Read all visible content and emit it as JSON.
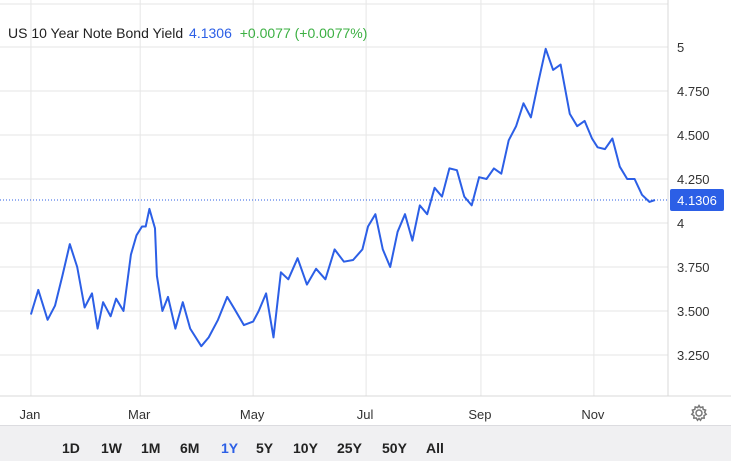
{
  "header": {
    "title": "US 10 Year Note Bond Yield",
    "price": "4.1306",
    "change": "+0.0077 (+0.0077%)"
  },
  "current_label": "4.1306",
  "settings_icon": "gear-icon",
  "colors": {
    "line": "#2c5fe6",
    "positive": "#3cb043",
    "grid": "#e6e6e6",
    "current_label_bg": "#2c5fe6"
  },
  "ranges": [
    {
      "label": "1D",
      "active": false
    },
    {
      "label": "1W",
      "active": false
    },
    {
      "label": "1M",
      "active": false
    },
    {
      "label": "6M",
      "active": false
    },
    {
      "label": "1Y",
      "active": true
    },
    {
      "label": "5Y",
      "active": false
    },
    {
      "label": "10Y",
      "active": false
    },
    {
      "label": "25Y",
      "active": false
    },
    {
      "label": "50Y",
      "active": false
    },
    {
      "label": "All",
      "active": false
    }
  ],
  "chart_data": {
    "type": "line",
    "title": "US 10 Year Note Bond Yield",
    "xlabel": "",
    "ylabel": "",
    "x_ticks": [
      "Jan",
      "Mar",
      "May",
      "Jul",
      "Sep",
      "Nov"
    ],
    "y_ticks": [
      "5",
      "4.750",
      "4.500",
      "4.250",
      "4",
      "3.750",
      "3.500",
      "3.250"
    ],
    "y_tick_values": [
      5,
      4.75,
      4.5,
      4.25,
      4,
      3.75,
      3.5,
      3.25
    ],
    "ylim": [
      3.1,
      5.15
    ],
    "current_value": 4.1306,
    "grid": true,
    "x": [
      "2023-01-01",
      "2023-01-05",
      "2023-01-10",
      "2023-01-14",
      "2023-01-18",
      "2023-01-22",
      "2023-01-26",
      "2023-01-30",
      "2023-02-03",
      "2023-02-06",
      "2023-02-09",
      "2023-02-13",
      "2023-02-16",
      "2023-02-20",
      "2023-02-24",
      "2023-02-27",
      "2023-03-02",
      "2023-03-04",
      "2023-03-06",
      "2023-03-09",
      "2023-03-10",
      "2023-03-13",
      "2023-03-16",
      "2023-03-20",
      "2023-03-24",
      "2023-03-28",
      "2023-04-03",
      "2023-04-07",
      "2023-04-12",
      "2023-04-17",
      "2023-04-21",
      "2023-04-26",
      "2023-05-01",
      "2023-05-04",
      "2023-05-08",
      "2023-05-12",
      "2023-05-16",
      "2023-05-20",
      "2023-05-25",
      "2023-05-30",
      "2023-06-04",
      "2023-06-09",
      "2023-06-14",
      "2023-06-19",
      "2023-06-24",
      "2023-06-29",
      "2023-07-02",
      "2023-07-06",
      "2023-07-10",
      "2023-07-14",
      "2023-07-18",
      "2023-07-22",
      "2023-07-26",
      "2023-07-30",
      "2023-08-03",
      "2023-08-07",
      "2023-08-11",
      "2023-08-15",
      "2023-08-19",
      "2023-08-23",
      "2023-08-27",
      "2023-08-31",
      "2023-09-04",
      "2023-09-08",
      "2023-09-12",
      "2023-09-16",
      "2023-09-20",
      "2023-09-24",
      "2023-09-28",
      "2023-10-02",
      "2023-10-06",
      "2023-10-10",
      "2023-10-14",
      "2023-10-19",
      "2023-10-23",
      "2023-10-27",
      "2023-10-31",
      "2023-11-03",
      "2023-11-07",
      "2023-11-11",
      "2023-11-15",
      "2023-11-19",
      "2023-11-23",
      "2023-11-27",
      "2023-12-01",
      "2023-12-04"
    ],
    "y": [
      3.48,
      3.62,
      3.45,
      3.53,
      3.7,
      3.88,
      3.75,
      3.52,
      3.6,
      3.4,
      3.55,
      3.47,
      3.57,
      3.5,
      3.82,
      3.93,
      3.98,
      3.98,
      4.08,
      3.97,
      3.7,
      3.5,
      3.58,
      3.4,
      3.55,
      3.4,
      3.3,
      3.35,
      3.45,
      3.58,
      3.51,
      3.42,
      3.44,
      3.5,
      3.6,
      3.35,
      3.72,
      3.68,
      3.8,
      3.65,
      3.74,
      3.68,
      3.85,
      3.78,
      3.79,
      3.85,
      3.98,
      4.05,
      3.85,
      3.75,
      3.95,
      4.05,
      3.9,
      4.1,
      4.05,
      4.2,
      4.15,
      4.31,
      4.3,
      4.15,
      4.1,
      4.26,
      4.25,
      4.31,
      4.28,
      4.47,
      4.55,
      4.68,
      4.6,
      4.8,
      4.99,
      4.87,
      4.9,
      4.62,
      4.55,
      4.58,
      4.48,
      4.43,
      4.42,
      4.48,
      4.32,
      4.25,
      4.25,
      4.16,
      4.12,
      4.1306
    ]
  }
}
